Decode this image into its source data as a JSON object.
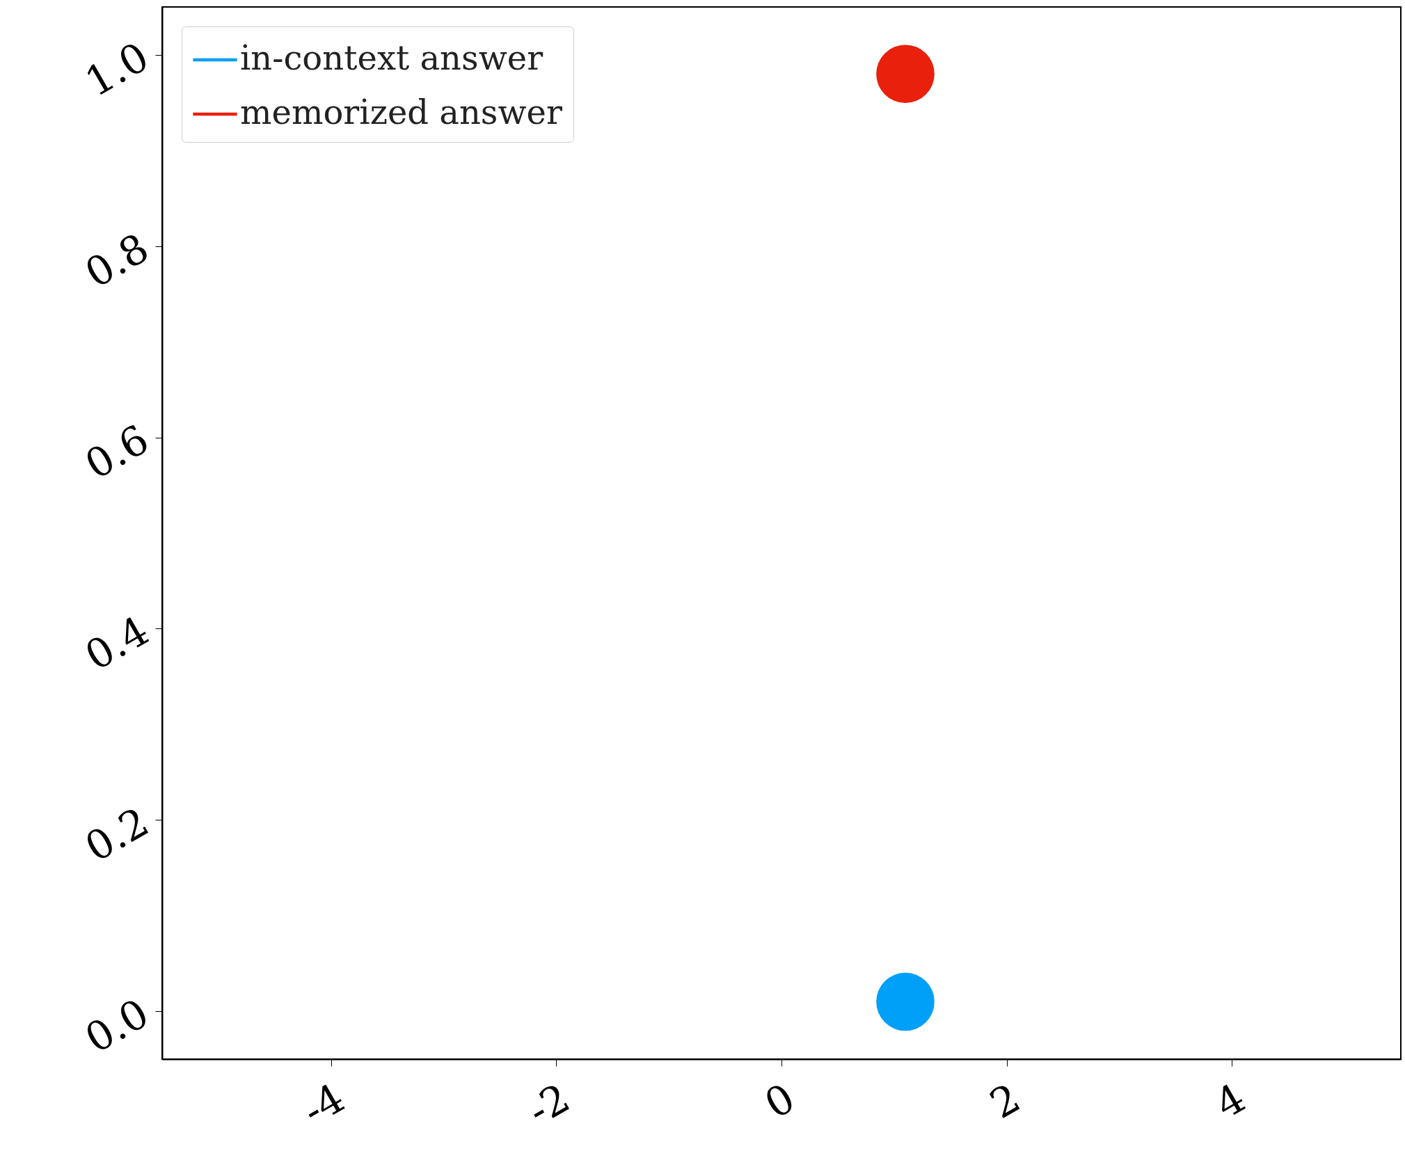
{
  "chart_data": {
    "type": "scatter",
    "x": [
      1.1
    ],
    "series": [
      {
        "name": "in-context answer",
        "color": "#00a0f8",
        "values": [
          0.01
        ]
      },
      {
        "name": "memorized answer",
        "color": "#e8200c",
        "values": [
          0.98
        ]
      }
    ],
    "xlim": [
      -5.5,
      5.5
    ],
    "xticks": [
      -4,
      -2,
      0,
      2,
      4
    ],
    "ylim": [
      -0.05,
      1.05
    ],
    "yticks": [
      {
        "value": 0,
        "label": "0.0"
      },
      {
        "value": 0.2,
        "label": "0.2"
      },
      {
        "value": 0.4,
        "label": "0.4"
      },
      {
        "value": 0.6,
        "label": "0.6"
      },
      {
        "value": 0.8,
        "label": "0.8"
      },
      {
        "value": 1,
        "label": "1.0"
      }
    ],
    "legend": "top left",
    "marker": "circle",
    "grid": false
  }
}
